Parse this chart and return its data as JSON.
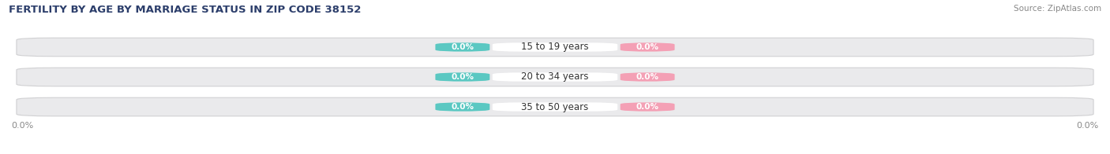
{
  "title": "FERTILITY BY AGE BY MARRIAGE STATUS IN ZIP CODE 38152",
  "source": "Source: ZipAtlas.com",
  "categories": [
    "15 to 19 years",
    "20 to 34 years",
    "35 to 50 years"
  ],
  "married_values": [
    0.0,
    0.0,
    0.0
  ],
  "unmarried_values": [
    0.0,
    0.0,
    0.0
  ],
  "married_color": "#5BC8C2",
  "unmarried_color": "#F4A0B5",
  "bar_bg_color": "#E8E8EA",
  "bar_height": 0.62,
  "xlim": [
    -1.0,
    1.0
  ],
  "title_fontsize": 9.5,
  "source_fontsize": 7.5,
  "label_fontsize": 7.5,
  "category_fontsize": 8.5,
  "axis_label_fontsize": 8,
  "background_color": "#FFFFFF",
  "bar_background": "#EAEAEC",
  "title_color": "#2C3E6B",
  "source_color": "#888888",
  "axis_color": "#888888",
  "category_color": "#333333"
}
